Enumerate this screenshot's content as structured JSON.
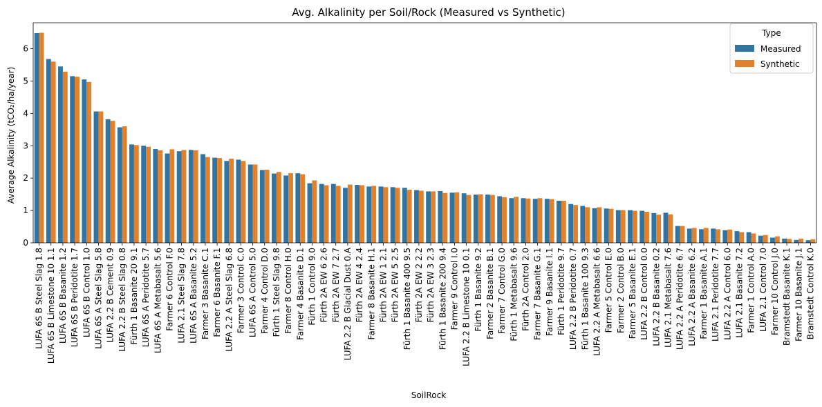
{
  "chart_data": {
    "type": "bar",
    "title": "Avg. Alkalinity per Soil/Rock (Measured vs Synthetic)",
    "xlabel": "SoilRock",
    "ylabel": "Average Alkalinity (tCO₂/ha/year)",
    "ylim": [
      0,
      6.8
    ],
    "yticks": [
      0,
      1,
      2,
      3,
      4,
      5,
      6
    ],
    "grid": false,
    "legend": {
      "title": "Type",
      "position": "top-right",
      "entries": [
        "Measured",
        "Synthetic"
      ]
    },
    "colors": {
      "Measured": "#3274a1",
      "Synthetic": "#e1812c"
    },
    "categories": [
      "LUFA 6S B Steel Slag 1.8",
      "LUFA 6S B Limestone 10 1.1",
      "LUFA 6S B Basanite 1.2",
      "LUFA 6S B Peridotite 1.7",
      "LUFA 6S B Control 1.0",
      "LUFA 6S A Steel Slag 5.8",
      "LUFA 2.2 B Cement 0.9",
      "LUFA 2.2 B Steel Slag 0.8",
      "Fürth 1 Basanite 20 9.1",
      "LUFA 6S A Peridotite 5.7",
      "LUFA 6S A Metabasalt 5.6",
      "Farmer 6 Control F.0",
      "LUFA 2.1 Steel Slag 7.8",
      "LUFA 6S A Basanite 5.2",
      "Farmer 3 Basanite C.1",
      "Farmer 6 Basanite F.1",
      "LUFA 2.2 A Steel Slag 6.8",
      "Farmer 3 Control C.0",
      "LUFA 6S A Control 5.0",
      "Farmer 4 Control D.0",
      "Fürth 1 Steel Slag 9.8",
      "Farmer 8 Control H.0",
      "Farmer 4 Basanite D.1",
      "Fürth 1 Control 9.0",
      "Fürth 2A EW 6 2.6",
      "Fürth 2A EW 7 2.7",
      "LUFA 2.2 B Glacial Dust 0.A",
      "Fürth 2A EW 4 2.4",
      "Farmer 8 Basanite H.1",
      "Fürth 2A EW 1 2.1",
      "Fürth 2A EW 5 2.5",
      "Fürth 1 Basanite 400 9.5",
      "Fürth 2A EW 2 2.2",
      "Fürth 2A EW 3 2.3",
      "Fürth 1 Basanite 200 9.4",
      "Farmer 9 Control I.0",
      "LUFA 2.2 B Limestone 10 0.1",
      "Fürth 1 Basanite 9.2",
      "Farmer 2 Basanite B.1",
      "Farmer 7 Control G.0",
      "Fürth 1 Metabasalt 9.6",
      "Fürth 2A Control 2.0",
      "Farmer 7 Basanite G.1",
      "Farmer 9 Basanite I.1",
      "Fürth 1 Peridotite 9.7",
      "LUFA 2.2 B Peridotite 0.7",
      "Fürth 1 Basanite 100 9.3",
      "LUFA 2.2 A Metabasalt 6.6",
      "Farmer 5 Control E.0",
      "Farmer 2 Control B.0",
      "Farmer 5 Basanite E.1",
      "LUFA 2.2 B Control 0.0",
      "LUFA 2.2 B Basanite 0.2",
      "LUFA 2.1 Metabasalt 7.6",
      "LUFA 2.2 A Peridotite 6.7",
      "LUFA 2.2 A Basanite 6.2",
      "Farmer 1 Basanite A.1",
      "LUFA 2.1 Peridotite 7.7",
      "LUFA 2.2 A Control 6.0",
      "LUFA 2.1 Basanite 7.2",
      "Farmer 1 Control A.0",
      "LUFA 2.1 Control 7.0",
      "Farmer 10 Control J.0",
      "Bramstedt Basanite K.1",
      "Farmer 10 Basanite J.1",
      "Bramstedt Control K.0"
    ],
    "series": [
      {
        "name": "Measured",
        "values": [
          6.48,
          5.68,
          5.45,
          5.15,
          5.05,
          4.06,
          3.82,
          3.57,
          3.04,
          3.0,
          2.9,
          2.76,
          2.83,
          2.87,
          2.74,
          2.63,
          2.53,
          2.57,
          2.42,
          2.25,
          2.14,
          2.08,
          2.15,
          1.84,
          1.82,
          1.82,
          1.7,
          1.79,
          1.74,
          1.74,
          1.72,
          1.7,
          1.63,
          1.59,
          1.6,
          1.55,
          1.53,
          1.49,
          1.49,
          1.44,
          1.38,
          1.38,
          1.36,
          1.36,
          1.3,
          1.2,
          1.14,
          1.07,
          1.06,
          1.01,
          1.01,
          0.99,
          0.92,
          0.93,
          0.52,
          0.44,
          0.42,
          0.44,
          0.39,
          0.36,
          0.33,
          0.22,
          0.16,
          0.13,
          0.09,
          0.08
        ]
      },
      {
        "name": "Synthetic",
        "values": [
          6.49,
          5.6,
          5.29,
          5.13,
          4.97,
          4.06,
          3.77,
          3.6,
          3.02,
          2.97,
          2.86,
          2.89,
          2.87,
          2.86,
          2.65,
          2.62,
          2.6,
          2.53,
          2.42,
          2.26,
          2.19,
          2.15,
          2.12,
          1.93,
          1.78,
          1.76,
          1.8,
          1.78,
          1.76,
          1.72,
          1.7,
          1.64,
          1.61,
          1.59,
          1.54,
          1.56,
          1.48,
          1.5,
          1.48,
          1.41,
          1.42,
          1.37,
          1.38,
          1.35,
          1.3,
          1.17,
          1.1,
          1.1,
          1.05,
          1.01,
          0.99,
          0.96,
          0.87,
          0.88,
          0.52,
          0.46,
          0.46,
          0.42,
          0.41,
          0.33,
          0.29,
          0.24,
          0.2,
          0.12,
          0.13,
          0.11
        ]
      }
    ]
  }
}
